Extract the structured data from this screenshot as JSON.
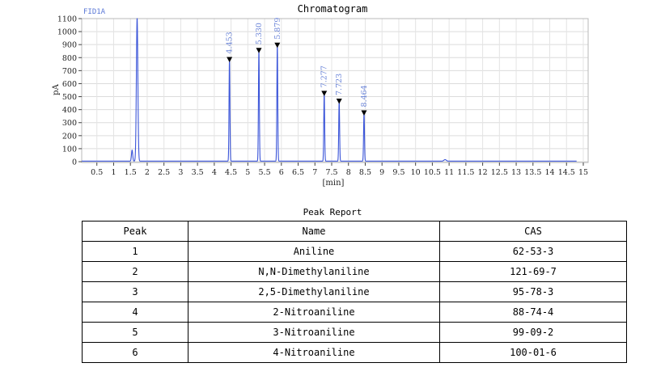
{
  "chart_data": {
    "type": "line",
    "title": "Chromatogram",
    "detector_label": "FID1A",
    "xlabel": "[min]",
    "ylabel": "pA",
    "xlim": [
      0,
      15
    ],
    "ylim": [
      -20,
      1100
    ],
    "x_ticks": [
      "0.5",
      "1",
      "1.5",
      "2",
      "2.5",
      "3",
      "3.5",
      "4",
      "4.5",
      "5",
      "5.5",
      "6",
      "6.5",
      "7",
      "7.5",
      "8",
      "8.5",
      "9",
      "9.5",
      "10",
      "10.5",
      "11",
      "11.5",
      "12",
      "12.5",
      "13",
      "13.5",
      "14",
      "14.5",
      "15"
    ],
    "y_ticks": [
      "0",
      "100",
      "200",
      "300",
      "400",
      "500",
      "600",
      "700",
      "800",
      "900",
      "1000",
      "1100"
    ],
    "grid": true,
    "line_color": "#3b55d9",
    "trace_end_min": 14.8,
    "solvent_peaks": [
      {
        "rt": 1.55,
        "height": 85
      },
      {
        "rt": 1.7,
        "height": 1100
      }
    ],
    "minor_peaks": [
      {
        "rt": 10.88,
        "height": 12
      }
    ],
    "peaks": [
      {
        "rt": 4.453,
        "label": "4.453",
        "height": 780
      },
      {
        "rt": 5.33,
        "label": "5.330",
        "height": 850
      },
      {
        "rt": 5.879,
        "label": "5.879",
        "height": 890
      },
      {
        "rt": 7.277,
        "label": "7.277",
        "height": 520
      },
      {
        "rt": 7.723,
        "label": "7.723",
        "height": 460
      },
      {
        "rt": 8.464,
        "label": "8.464",
        "height": 370
      }
    ]
  },
  "report": {
    "title": "Peak Report",
    "headers": {
      "peak": "Peak",
      "name": "Name",
      "cas": "CAS"
    },
    "rows": [
      {
        "peak": "1",
        "name": "Aniline",
        "cas": "62-53-3"
      },
      {
        "peak": "2",
        "name": "N,N-Dimethylaniline",
        "cas": "121-69-7"
      },
      {
        "peak": "3",
        "name": "2,5-Dimethylaniline",
        "cas": "95-78-3"
      },
      {
        "peak": "4",
        "name": "2-Nitroaniline",
        "cas": "88-74-4"
      },
      {
        "peak": "5",
        "name": "3-Nitroaniline",
        "cas": "99-09-2"
      },
      {
        "peak": "6",
        "name": "4-Nitroaniline",
        "cas": "100-01-6"
      }
    ]
  }
}
